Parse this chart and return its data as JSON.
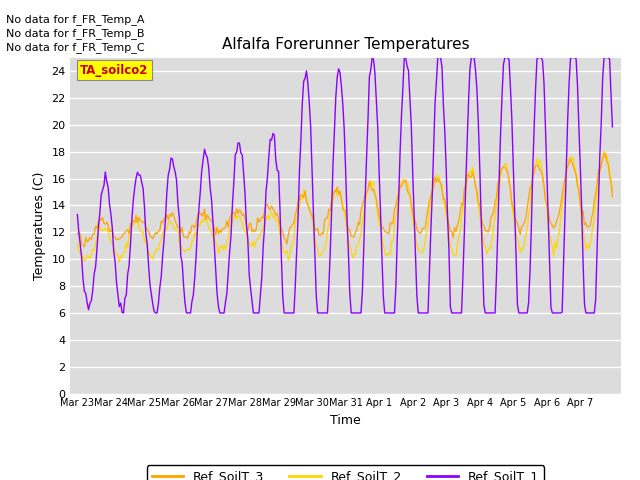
{
  "title": "Alfalfa Forerunner Temperatures",
  "ylabel": "Temperatures (C)",
  "xlabel": "Time",
  "ylim": [
    0,
    25
  ],
  "yticks": [
    0,
    2,
    4,
    6,
    8,
    10,
    12,
    14,
    16,
    18,
    20,
    22,
    24
  ],
  "bg_color": "#dcdcdc",
  "no_data_text": [
    "No data for f_FR_Temp_A",
    "No data for f_FR_Temp_B",
    "No data for f_FR_Temp_C"
  ],
  "legend_labels": [
    "Ref_SoilT_3",
    "Ref_SoilT_2",
    "Ref_SoilT_1"
  ],
  "legend_colors": [
    "#FFA500",
    "#FFD700",
    "#8B00FF"
  ],
  "annotation_label": "TA_soilco2",
  "annotation_color": "#CC0000",
  "annotation_bg": "#FFFF00",
  "n_days": 16,
  "pts_per_day": 24,
  "xtick_labels": [
    "Mar 23",
    "Mar 24",
    "Mar 25",
    "Mar 26",
    "Mar 27",
    "Mar 28",
    "Mar 29",
    "Mar 30",
    "Mar 31",
    "Apr 1",
    "Apr 2",
    "Apr 3",
    "Apr 4",
    "Apr 5",
    "Apr 6",
    "Apr 7"
  ]
}
